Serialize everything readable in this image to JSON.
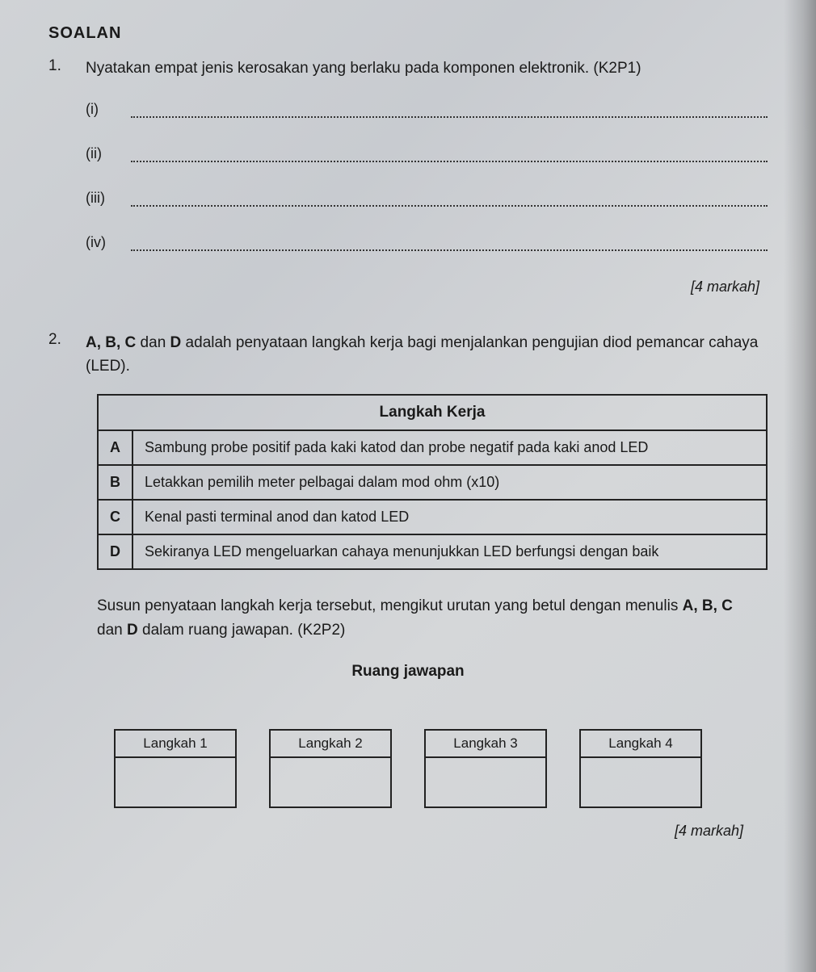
{
  "heading": "SOALAN",
  "q1": {
    "number": "1.",
    "text": "Nyatakan empat jenis kerosakan yang berlaku pada komponen elektronik. (K2P1)",
    "items": [
      "(i)",
      "(ii)",
      "(iii)",
      "(iv)"
    ],
    "marks": "[4 markah]"
  },
  "q2": {
    "number": "2.",
    "text_part1": "A, B, C",
    "text_part2": " dan ",
    "text_part3": "D",
    "text_part4": " adalah penyataan langkah kerja bagi menjalankan pengujian diod pemancar cahaya (LED).",
    "table_header": "Langkah Kerja",
    "rows": [
      {
        "letter": "A",
        "text": "Sambung probe positif pada kaki katod dan probe negatif pada kaki anod LED"
      },
      {
        "letter": "B",
        "text": "Letakkan pemilih meter pelbagai dalam mod ohm (x10)"
      },
      {
        "letter": "C",
        "text": "Kenal pasti terminal anod dan katod LED"
      },
      {
        "letter": "D",
        "text": "Sekiranya LED mengeluarkan cahaya menunjukkan LED berfungsi dengan baik"
      }
    ],
    "instr_part1": "Susun penyataan langkah kerja tersebut, mengikut urutan yang betul dengan menulis ",
    "instr_part2": "A, B, C",
    "instr_part3": " dan ",
    "instr_part4": "D",
    "instr_part5": " dalam ruang jawapan. (K2P2)",
    "ruang_title": "Ruang jawapan",
    "boxes": [
      "Langkah 1",
      "Langkah 2",
      "Langkah 3",
      "Langkah 4"
    ],
    "marks": "[4 markah]"
  }
}
